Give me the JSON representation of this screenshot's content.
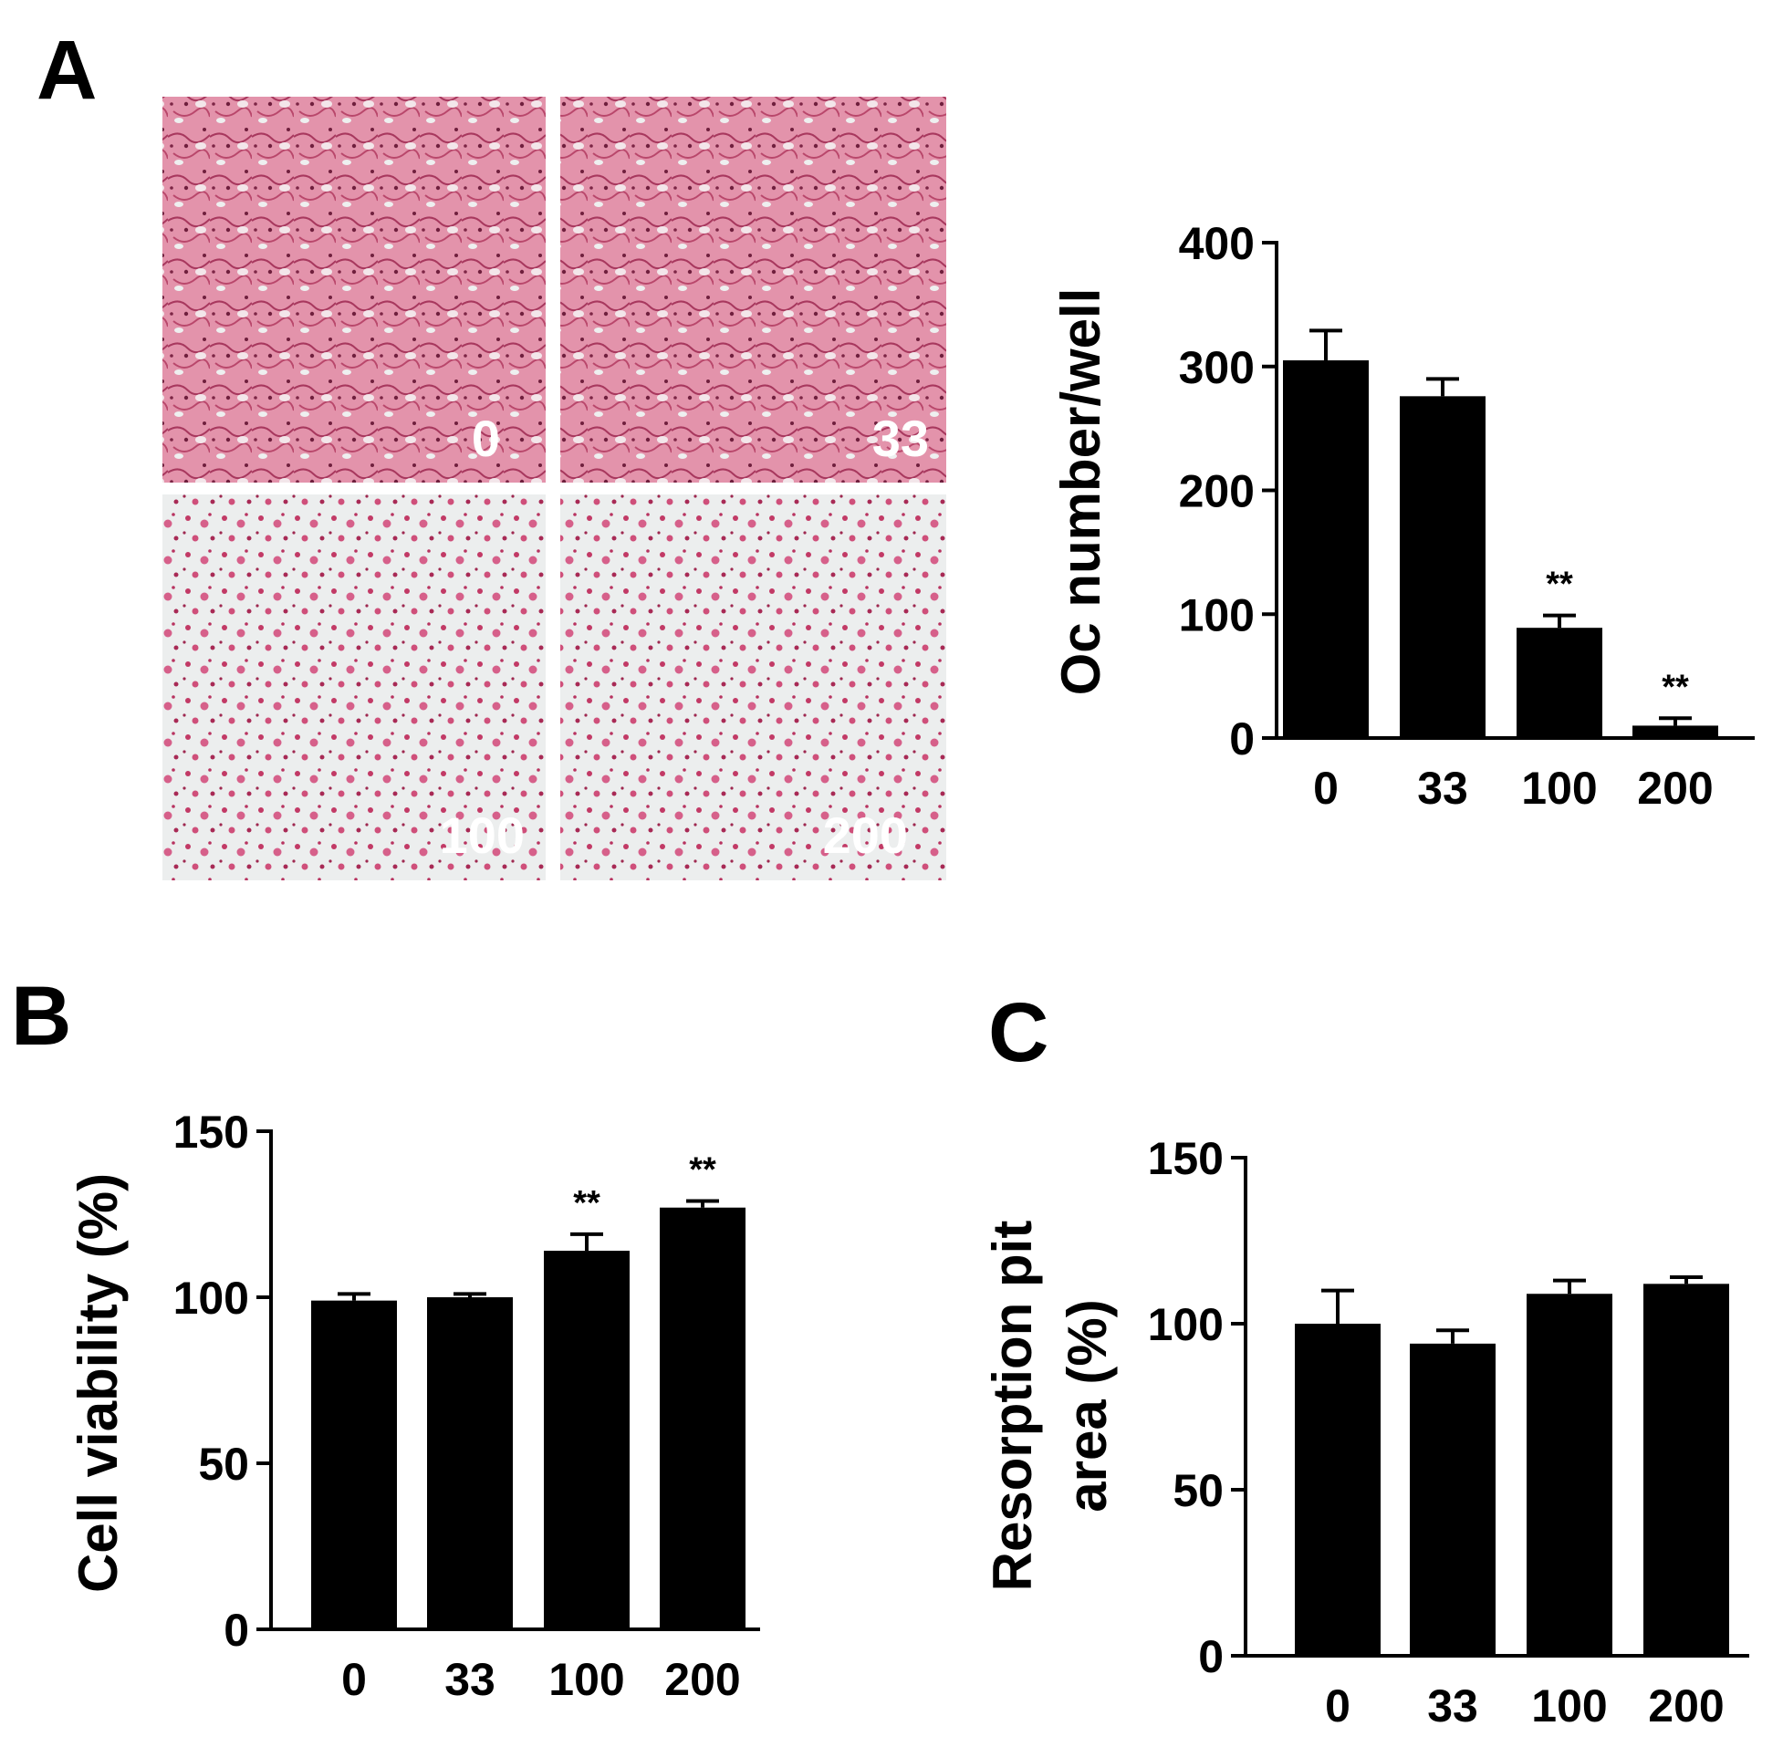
{
  "panels": {
    "labels": [
      "A",
      "B",
      "C"
    ],
    "micrographs": [
      "0",
      "33",
      "100",
      "200"
    ]
  },
  "chart_data": [
    {
      "type": "bar",
      "ylabel": [
        "Oc number/well"
      ],
      "categories": [
        "0",
        "33",
        "100",
        "200"
      ],
      "values": [
        305,
        276,
        89,
        10
      ],
      "errors": [
        24,
        14,
        10,
        6
      ],
      "color": "#000000",
      "ylim": [
        0,
        400
      ],
      "yticks": [
        0,
        100,
        200,
        300,
        400
      ],
      "annotations": [
        {
          "x": "100",
          "text": "**"
        },
        {
          "x": "200",
          "text": "**"
        }
      ]
    },
    {
      "type": "bar",
      "ylabel": [
        "Cell viability (%)"
      ],
      "categories": [
        "0",
        "33",
        "100",
        "200"
      ],
      "values": [
        99,
        100,
        114,
        127
      ],
      "errors": [
        2,
        1,
        5,
        2
      ],
      "color": "#000000",
      "ylim": [
        0,
        150
      ],
      "yticks": [
        0,
        50,
        100,
        150
      ],
      "annotations": [
        {
          "x": "100",
          "text": "**"
        },
        {
          "x": "200",
          "text": "**"
        }
      ]
    },
    {
      "type": "bar",
      "ylabel": [
        "Resorption pit",
        "area (%)"
      ],
      "categories": [
        "0",
        "33",
        "100",
        "200"
      ],
      "values": [
        100,
        94,
        109,
        112
      ],
      "errors": [
        10,
        4,
        4,
        2
      ],
      "color": "#000000",
      "ylim": [
        0,
        150
      ],
      "yticks": [
        0,
        50,
        100,
        150
      ],
      "annotations": []
    }
  ]
}
